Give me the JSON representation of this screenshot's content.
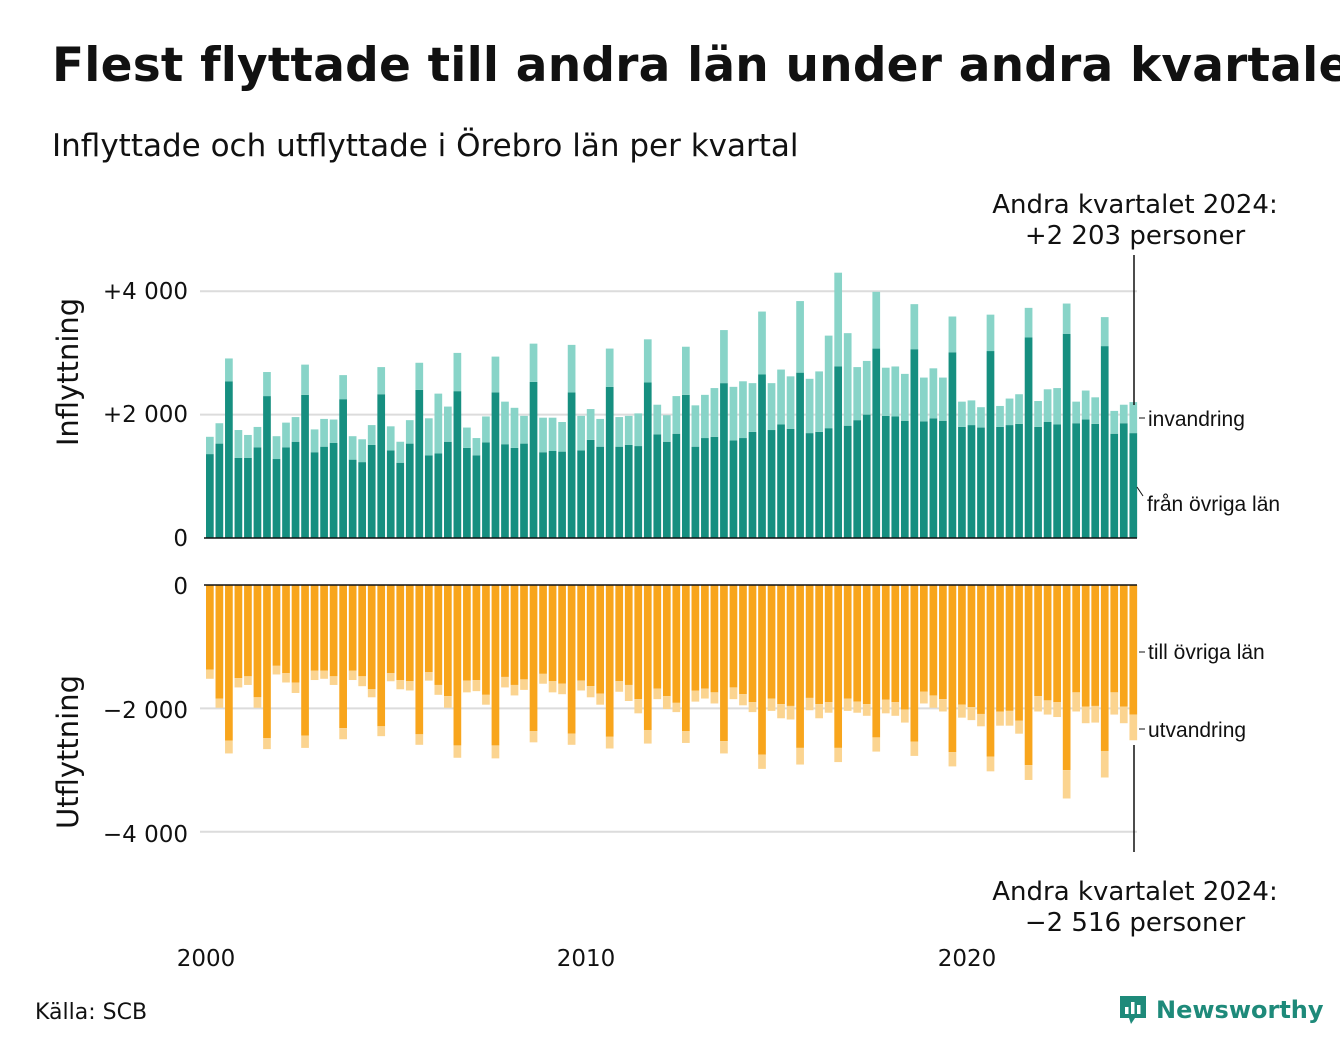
{
  "chart_data": {
    "type": "bar",
    "title": "Flest flyttade till andra län under andra kvartalet",
    "subtitle": "Inflyttade och utflyttade i Örebro län per kvartal",
    "source": "Källa: SCB",
    "brand": "Newsworthy",
    "x_ticks": [
      "2000",
      "2010",
      "2020"
    ],
    "x_range": [
      "2000 K1",
      "2024 K2"
    ],
    "inflow_panel": {
      "ylabel": "Inflyttning",
      "yticks": [
        "0",
        "+2 000",
        "+4 000"
      ],
      "ylim": [
        0,
        4300
      ],
      "series": [
        {
          "name": "från övriga län",
          "color": "#168f80",
          "values": [
            1360,
            1530,
            2540,
            1300,
            1300,
            1470,
            2300,
            1280,
            1470,
            1560,
            2320,
            1390,
            1480,
            1540,
            2250,
            1270,
            1230,
            1510,
            2330,
            1420,
            1220,
            1530,
            2400,
            1340,
            1370,
            1560,
            2380,
            1460,
            1340,
            1550,
            2360,
            1520,
            1460,
            1530,
            2530,
            1390,
            1410,
            1400,
            2360,
            1420,
            1590,
            1480,
            2450,
            1480,
            1510,
            1490,
            2520,
            1680,
            1560,
            1690,
            2320,
            1480,
            1620,
            1640,
            2510,
            1580,
            1620,
            1720,
            2650,
            1750,
            1840,
            1770,
            2680,
            1700,
            1720,
            1780,
            2780,
            1820,
            1910,
            2000,
            3070,
            1980,
            1970,
            1900,
            3060,
            1890,
            1940,
            1900,
            3010,
            1800,
            1830,
            1790,
            3030,
            1800,
            1830,
            1850,
            3250,
            1800,
            1880,
            1840,
            3310,
            1860,
            1920,
            1850,
            3110,
            1690,
            1860,
            1700
          ]
        },
        {
          "name": "invandring",
          "color": "#88d4c8",
          "values": [
            280,
            330,
            370,
            450,
            370,
            330,
            390,
            370,
            400,
            400,
            490,
            370,
            450,
            380,
            390,
            380,
            370,
            320,
            440,
            390,
            340,
            380,
            440,
            600,
            970,
            570,
            620,
            330,
            280,
            420,
            580,
            690,
            650,
            450,
            620,
            560,
            540,
            480,
            770,
            560,
            500,
            450,
            620,
            480,
            470,
            530,
            700,
            480,
            430,
            610,
            780,
            670,
            700,
            790,
            860,
            870,
            920,
            790,
            1020,
            760,
            890,
            850,
            1160,
            880,
            980,
            1500,
            1520,
            1500,
            860,
            870,
            920,
            780,
            810,
            760,
            730,
            710,
            810,
            700,
            580,
            410,
            400,
            330,
            590,
            340,
            430,
            480,
            480,
            420,
            530,
            590,
            490,
            350,
            470,
            430,
            470,
            370,
            300,
            503
          ]
        }
      ]
    },
    "outflow_panel": {
      "ylabel": "Utflyttning",
      "yticks": [
        "0",
        "−2 000",
        "−4 000"
      ],
      "ylim": [
        -4300,
        0
      ],
      "series": [
        {
          "name": "till övriga län",
          "color": "#f8a51c",
          "values": [
            -1370,
            -1840,
            -2520,
            -1510,
            -1480,
            -1820,
            -2480,
            -1310,
            -1430,
            -1580,
            -2440,
            -1390,
            -1390,
            -1480,
            -2320,
            -1390,
            -1480,
            -1690,
            -2290,
            -1430,
            -1540,
            -1560,
            -2420,
            -1410,
            -1620,
            -1800,
            -2600,
            -1550,
            -1540,
            -1780,
            -2600,
            -1490,
            -1620,
            -1530,
            -2370,
            -1440,
            -1560,
            -1600,
            -2410,
            -1550,
            -1640,
            -1760,
            -2460,
            -1560,
            -1620,
            -1850,
            -2350,
            -1680,
            -1800,
            -1910,
            -2370,
            -1710,
            -1680,
            -1740,
            -2530,
            -1660,
            -1770,
            -1900,
            -2750,
            -1840,
            -1930,
            -1960,
            -2640,
            -1830,
            -1930,
            -1900,
            -2640,
            -1840,
            -1890,
            -1930,
            -2470,
            -1860,
            -1900,
            -2020,
            -2540,
            -1730,
            -1790,
            -1850,
            -2710,
            -1940,
            -1980,
            -2090,
            -2780,
            -2050,
            -2040,
            -2200,
            -2920,
            -1800,
            -1870,
            -1900,
            -3000,
            -1740,
            -1970,
            -1960,
            -2690,
            -1740,
            -1970,
            -2100
          ]
        },
        {
          "name": "utvandring",
          "color": "#fbd490",
          "values": [
            -150,
            -150,
            -210,
            -150,
            -140,
            -170,
            -180,
            -140,
            -150,
            -170,
            -200,
            -150,
            -130,
            -140,
            -180,
            -150,
            -160,
            -130,
            -160,
            -130,
            -150,
            -150,
            -170,
            -140,
            -160,
            -190,
            -200,
            -190,
            -180,
            -160,
            -210,
            -170,
            -170,
            -170,
            -180,
            -160,
            -180,
            -170,
            -180,
            -160,
            -180,
            -180,
            -190,
            -170,
            -260,
            -230,
            -220,
            -170,
            -210,
            -150,
            -190,
            -180,
            -160,
            -180,
            -200,
            -190,
            -180,
            -160,
            -230,
            -200,
            -230,
            -220,
            -270,
            -200,
            -230,
            -170,
            -230,
            -200,
            -180,
            -190,
            -230,
            -220,
            -220,
            -210,
            -230,
            -190,
            -200,
            -200,
            -230,
            -210,
            -210,
            -200,
            -240,
            -230,
            -240,
            -210,
            -240,
            -250,
            -230,
            -240,
            -460,
            -310,
            -270,
            -270,
            -430,
            -360,
            -270,
            -416
          ]
        }
      ]
    },
    "annotations": {
      "inflow_header": [
        "Andra kvartalet 2024:",
        "+2 203 personer"
      ],
      "outflow_header": [
        "Andra kvartalet 2024:",
        "−2 516 personer"
      ]
    }
  }
}
